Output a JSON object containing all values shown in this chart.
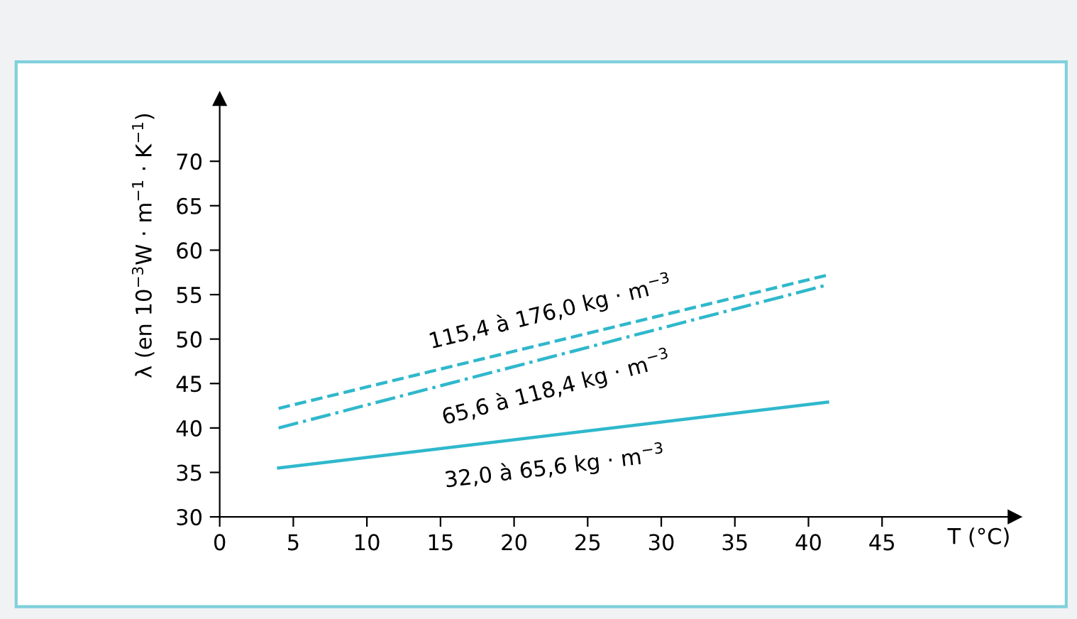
{
  "chart_data": {
    "type": "line",
    "xlabel": "T (°C)",
    "ylabel": "λ (en 10$^{−3}$W · m$^{−1}$ · K$^{−1}$)",
    "x": [
      4,
      41.3
    ],
    "series": [
      {
        "name": "115,4 à 176,0 kg · m$^{−3}$",
        "color": "#2fb8cc",
        "values": [
          42.2,
          57.2
        ],
        "line_style": "dashed"
      },
      {
        "name": "65,6 à 118,4 kg · m$^{−3}$",
        "color": "#2fb8cc",
        "values": [
          40,
          56.1
        ],
        "line_style": "dashdot"
      },
      {
        "name": "32,0 à 65,6 kg · m$^{−3}$",
        "color": "#2fb8cc",
        "values": [
          35.5,
          42.9
        ],
        "line_style": "solid"
      }
    ],
    "xlim": [
      0,
      54
    ],
    "ylim": [
      30,
      77
    ],
    "xticks": [
      0,
      5,
      10,
      15,
      20,
      25,
      30,
      35,
      40,
      45
    ],
    "yticks": [
      30,
      35,
      40,
      45,
      50,
      55,
      60,
      65,
      70
    ],
    "grid": false,
    "legend": false
  }
}
